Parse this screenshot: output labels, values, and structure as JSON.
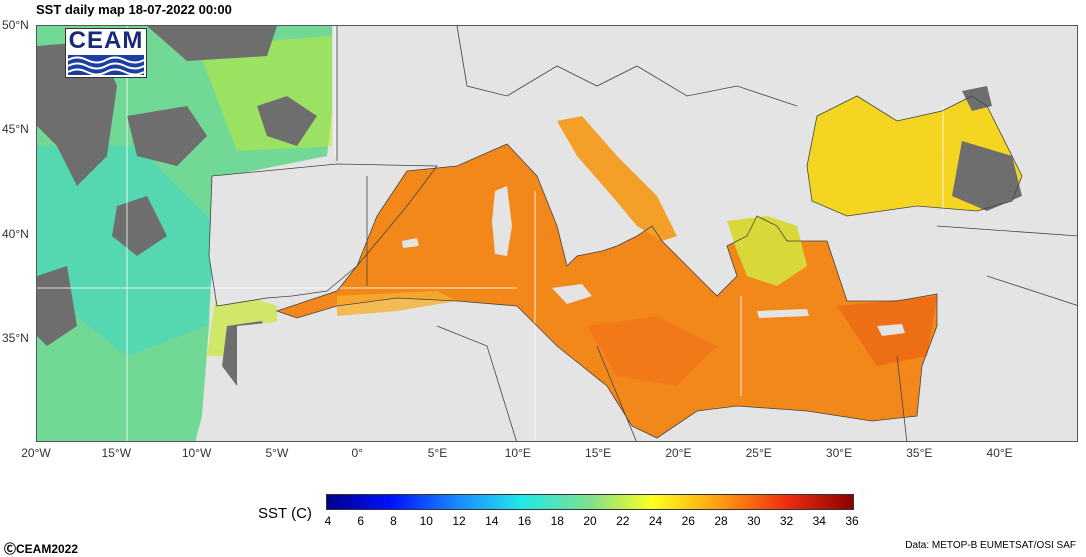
{
  "title": "SST daily map 18-07-2022  00:00",
  "logo_text": "CEAM",
  "lat_labels": [
    "50°N",
    "45°N",
    "40°N",
    "35°N"
  ],
  "lon_labels": [
    "20°W",
    "15°W",
    "10°W",
    "5°W",
    "0°",
    "5°E",
    "10°E",
    "15°E",
    "20°E",
    "25°E",
    "30°E",
    "35°E",
    "40°E"
  ],
  "colorbar": {
    "label": "SST (C)",
    "ticks": [
      "4",
      "6",
      "8",
      "10",
      "12",
      "14",
      "16",
      "18",
      "20",
      "22",
      "24",
      "26",
      "28",
      "30",
      "32",
      "34",
      "36"
    ],
    "min": 4,
    "max": 36
  },
  "footer": {
    "copyright": "ⒸCEAM2022",
    "source": "Data: METOP-B EUMETSAT/OSI SAF"
  },
  "colors": {
    "land": "#e4e4e4",
    "cloud_mask": "#6e6e6e",
    "atlantic_sst": "#7fe08a",
    "med_sst": "#f38a1c",
    "black_sea_sst": "#f5dc20"
  }
}
